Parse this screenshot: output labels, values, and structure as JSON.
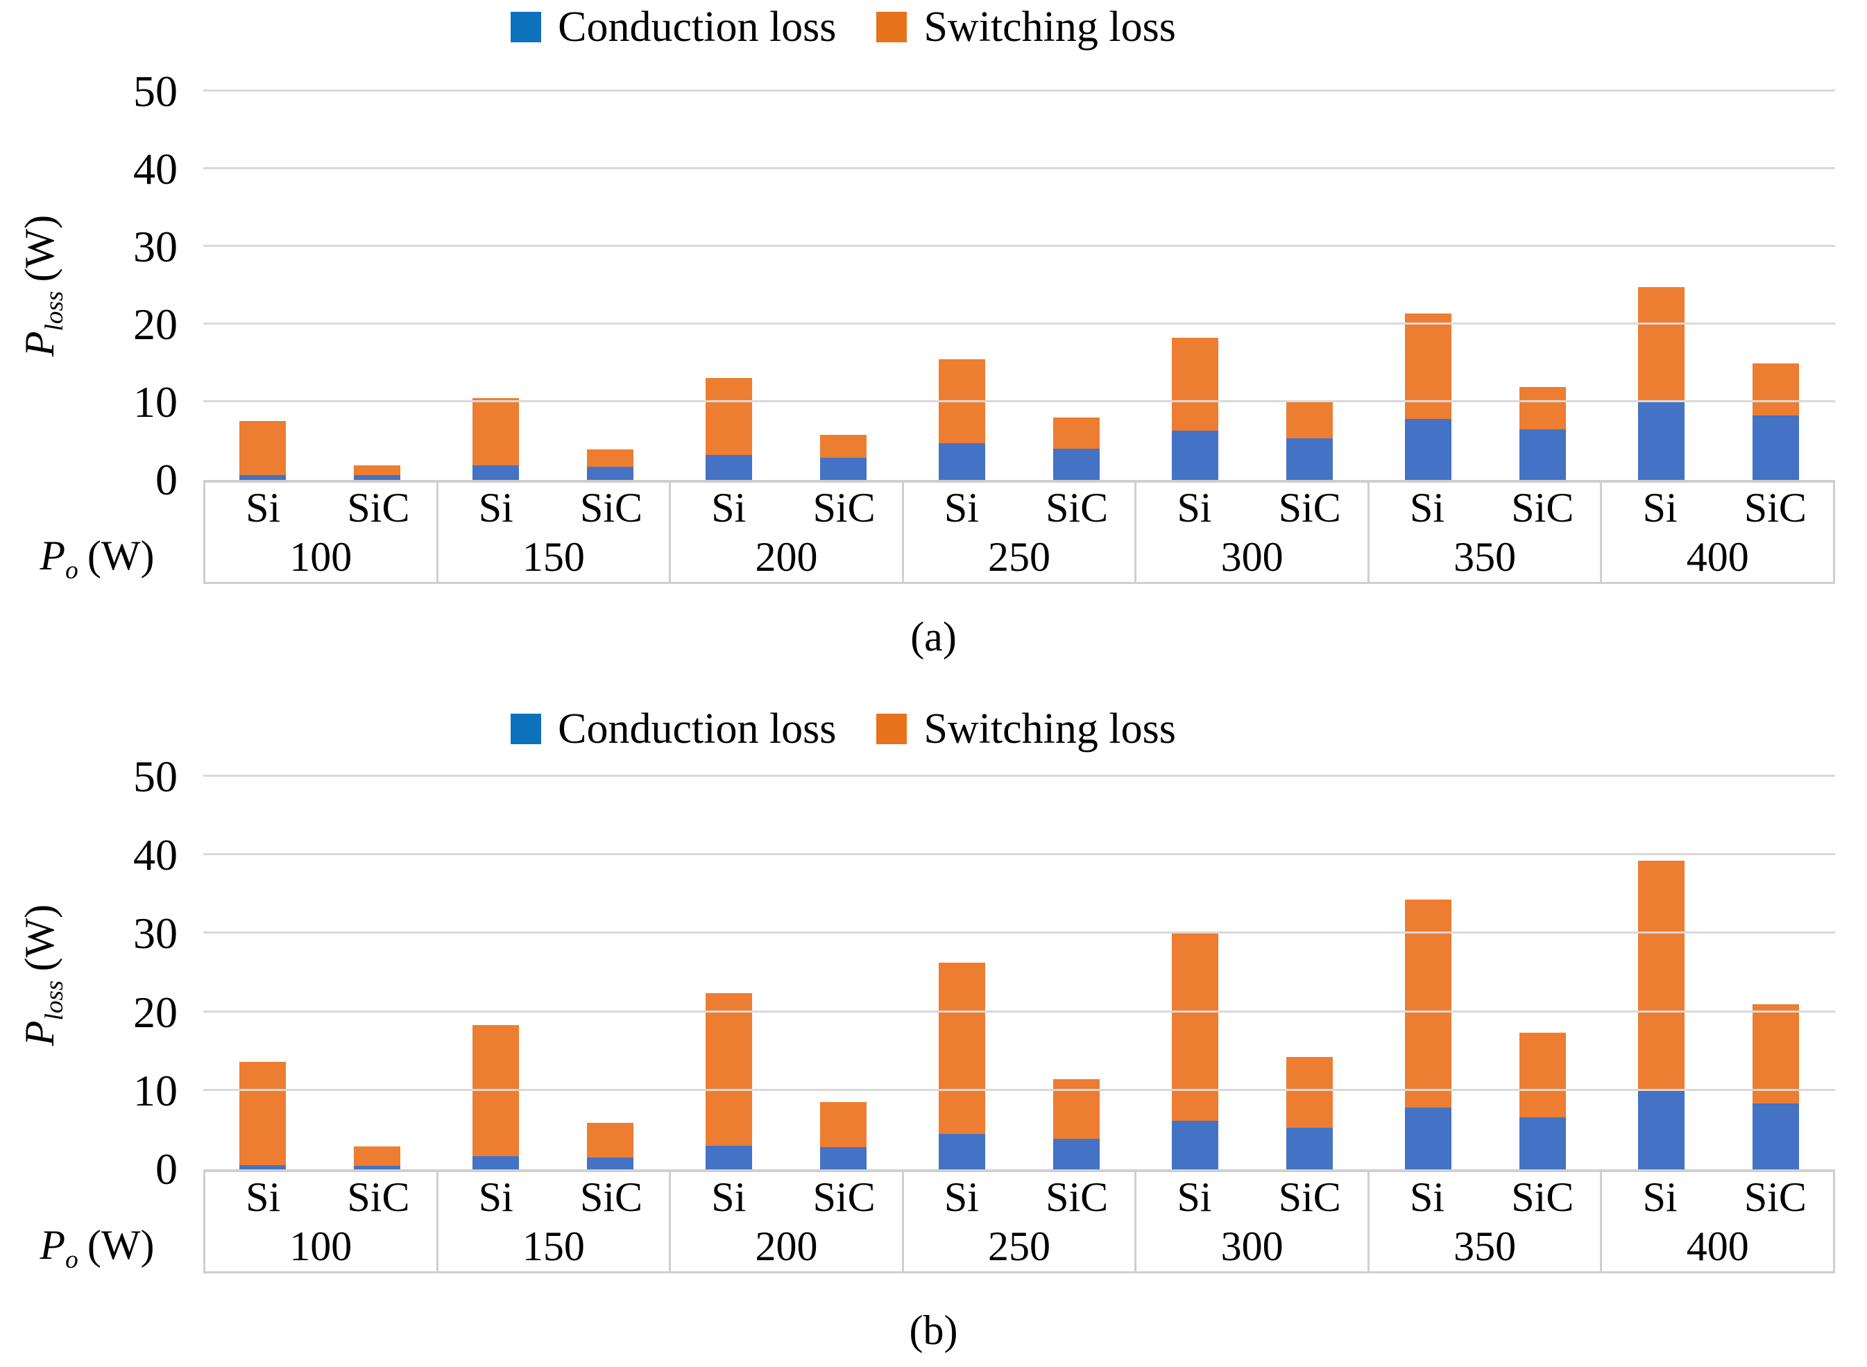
{
  "page": {
    "background": "#ffffff"
  },
  "legend": {
    "items": [
      {
        "label": "Conduction loss",
        "marker_color": "#0d72be",
        "series_color": "#4472c4"
      },
      {
        "label": "Switching loss",
        "marker_color": "#e8731d",
        "series_color": "#ed7d31"
      }
    ]
  },
  "y_axis_label": {
    "symbol": "P",
    "subscript": "loss",
    "unit": "(W)"
  },
  "x_axis_label": {
    "symbol": "P",
    "subscript": "o",
    "unit": "(W)"
  },
  "chart_data": [
    {
      "type": "bar",
      "stacked": true,
      "caption": "(a)",
      "ylabel": "Ploss (W)",
      "xlabel": "Po (W)",
      "ylim": [
        0,
        50
      ],
      "yticks": [
        0,
        10,
        20,
        30,
        40,
        50
      ],
      "grid": true,
      "legend_position": "top",
      "categories": [
        100,
        150,
        200,
        250,
        300,
        350,
        400
      ],
      "bars_per_category": [
        "Si",
        "SiC"
      ],
      "series": [
        {
          "name": "Conduction loss",
          "color": "#4472c4",
          "values": {
            "Si": [
              0.6,
              1.9,
              3.2,
              4.7,
              6.3,
              7.9,
              10.0
            ],
            "SiC": [
              0.6,
              1.7,
              2.9,
              4.0,
              5.4,
              6.5,
              8.3
            ]
          }
        },
        {
          "name": "Switching loss",
          "color": "#ed7d31",
          "values": {
            "Si": [
              7.0,
              8.6,
              9.9,
              10.8,
              12.0,
              13.5,
              14.8
            ],
            "SiC": [
              1.3,
              2.2,
              2.9,
              4.0,
              4.6,
              5.5,
              6.7
            ]
          }
        }
      ],
      "totals": {
        "Si": [
          7.6,
          10.5,
          13.1,
          15.5,
          18.3,
          21.4,
          24.8
        ],
        "SiC": [
          1.9,
          3.9,
          5.8,
          8.0,
          10.0,
          12.0,
          15.0
        ]
      }
    },
    {
      "type": "bar",
      "stacked": true,
      "caption": "(b)",
      "ylabel": "Ploss (W)",
      "xlabel": "Po (W)",
      "ylim": [
        0,
        50
      ],
      "yticks": [
        0,
        10,
        20,
        30,
        40,
        50
      ],
      "grid": true,
      "legend_position": "top",
      "categories": [
        100,
        150,
        200,
        250,
        300,
        350,
        400
      ],
      "bars_per_category": [
        "Si",
        "SiC"
      ],
      "series": [
        {
          "name": "Conduction loss",
          "color": "#4472c4",
          "values": {
            "Si": [
              0.5,
              1.7,
              3.0,
              4.5,
              6.2,
              7.9,
              10.2
            ],
            "SiC": [
              0.4,
              1.5,
              2.8,
              3.9,
              5.3,
              6.6,
              8.4
            ]
          }
        },
        {
          "name": "Switching loss",
          "color": "#ed7d31",
          "values": {
            "Si": [
              13.2,
              16.7,
              19.4,
              21.8,
              24.0,
              26.5,
              29.1
            ],
            "SiC": [
              2.5,
              4.4,
              5.8,
              7.6,
              9.0,
              10.8,
              12.6
            ]
          }
        }
      ],
      "totals": {
        "Si": [
          13.7,
          18.4,
          22.4,
          26.3,
          30.2,
          34.4,
          39.3
        ],
        "SiC": [
          2.9,
          5.9,
          8.6,
          11.5,
          14.3,
          17.4,
          21.0
        ]
      }
    }
  ]
}
